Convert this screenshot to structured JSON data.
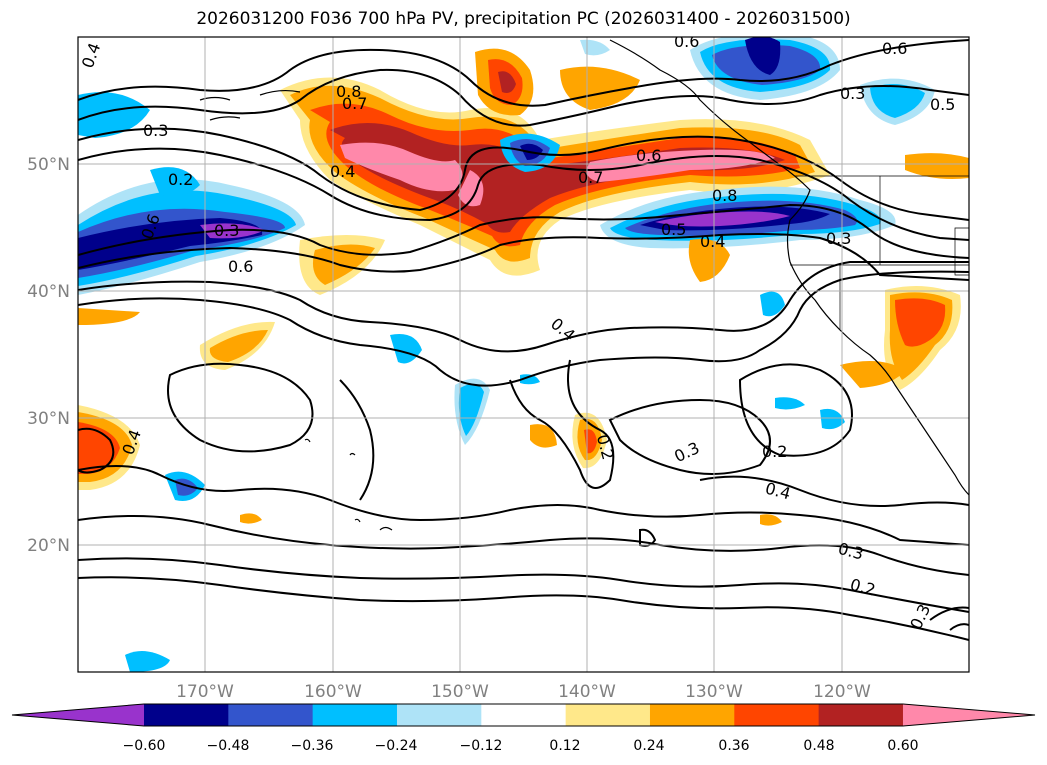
{
  "title": "2026031200 F036 700 hPa PV, precipitation PC (2026031400 - 2026031500)",
  "longitude_labels": [
    "170°W",
    "160°W",
    "150°W",
    "140°W",
    "130°W",
    "120°W"
  ],
  "latitude_labels": [
    "50°N",
    "40°N",
    "30°N",
    "20°N"
  ],
  "contour_labels": [
    "0.4",
    "0.6",
    "0.6",
    "0.3",
    "0.5",
    "0.8",
    "0.7",
    "0.3",
    "0.2",
    "0.4",
    "0.3",
    "0.6",
    "0.4",
    "0.7",
    "0.6",
    "0.8",
    "0.5",
    "0.4",
    "0.3",
    "0.4",
    "0.6",
    "0.2",
    "0.3",
    "0.2",
    "0.4",
    "0.3",
    "0.2",
    "0.3"
  ],
  "colorbar": {
    "ticks": [
      "−0.60",
      "−0.48",
      "−0.36",
      "−0.24",
      "−0.12",
      "0.12",
      "0.24",
      "0.36",
      "0.48",
      "0.60"
    ],
    "colors": [
      "#9933cc",
      "#00008b",
      "#3355cc",
      "#00bfff",
      "#aee3f7",
      "#ffffff",
      "#ffe88a",
      "#ffa500",
      "#ff4500",
      "#b22222",
      "#ff88aa"
    ]
  },
  "map_extent": {
    "lon": [
      -180,
      -110
    ],
    "lat": [
      10,
      60
    ]
  },
  "grid": true
}
